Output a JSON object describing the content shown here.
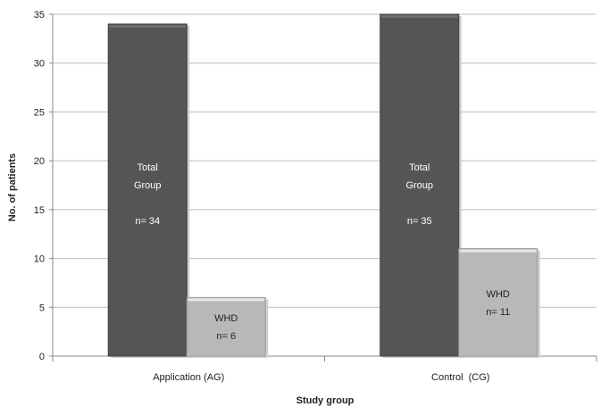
{
  "chart_data": {
    "type": "bar",
    "title": "",
    "xlabel": "Study group",
    "ylabel": "No. of patients",
    "ylim": [
      0,
      35
    ],
    "yticks": [
      0,
      5,
      10,
      15,
      20,
      25,
      30,
      35
    ],
    "grid": true,
    "categories": [
      "Application (AG)",
      "Control  (CG)"
    ],
    "series": [
      {
        "values": [
          34,
          35
        ],
        "color": "#555555",
        "labels": [
          [
            "Total",
            "Group",
            "",
            "n= 34"
          ],
          [
            "Total",
            "Group",
            "",
            "n= 35"
          ]
        ]
      },
      {
        "values": [
          6,
          11
        ],
        "color": "#b8b8b8",
        "labels": [
          [
            "WHD",
            "n= 6"
          ],
          [
            "WHD",
            "n= 11"
          ]
        ]
      }
    ]
  }
}
